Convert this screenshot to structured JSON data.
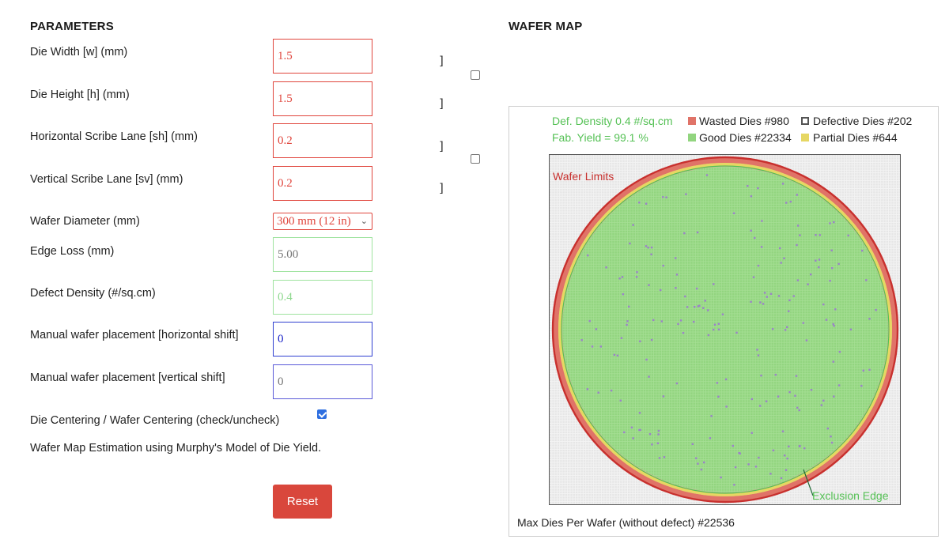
{
  "parameters": {
    "heading": "PARAMETERS",
    "die_width": {
      "label": "Die Width [w] (mm)",
      "value": "1.5"
    },
    "die_height": {
      "label": "Die Height [h] (mm)",
      "value": "1.5"
    },
    "h_scribe": {
      "label": "Horizontal Scribe Lane [sh] (mm)",
      "value": "0.2"
    },
    "v_scribe": {
      "label": "Vertical Scribe Lane [sv] (mm)",
      "value": "0.2"
    },
    "wafer_diameter": {
      "label": "Wafer Diameter (mm)",
      "selected": "300 mm (12 in)"
    },
    "edge_loss": {
      "label": "Edge Loss (mm)",
      "placeholder": "5.00"
    },
    "defect_density": {
      "label": "Defect Density (#/sq.cm)",
      "value": "0.4"
    },
    "h_shift": {
      "label": "Manual wafer placement [horizontal shift]",
      "value": "0"
    },
    "v_shift": {
      "label": "Manual wafer placement [vertical shift]",
      "placeholder": "0"
    },
    "centering": {
      "label": "Die Centering / Wafer Centering (check/uncheck)",
      "checked": true
    },
    "note": "Wafer Map Estimation using Murphy's Model of Die Yield.",
    "reset_label": "Reset",
    "bracket_glyph": "]"
  },
  "wafer_map": {
    "heading": "WAFER MAP",
    "def_density": "Def. Density 0.4 #/sq.cm",
    "fab_yield": "Fab. Yield = 99.1 %",
    "legend": {
      "wasted": "Wasted Dies  #980",
      "defective": "Defective Dies  #202",
      "good": "Good Dies #22334",
      "partial": "Partial Dies #644"
    },
    "wafer_limits_label": "Wafer Limits",
    "exclusion_edge_label": "Exclusion Edge",
    "max_dies": "Max Dies Per Wafer (without defect) #22536"
  },
  "colors": {
    "wasted": "#e07368",
    "good": "#92d57f",
    "partial": "#e6d763",
    "defective": "#9b83c8",
    "wafer_edge": "#c8302e",
    "label_green": "#55c155",
    "label_red": "#c8302e"
  }
}
